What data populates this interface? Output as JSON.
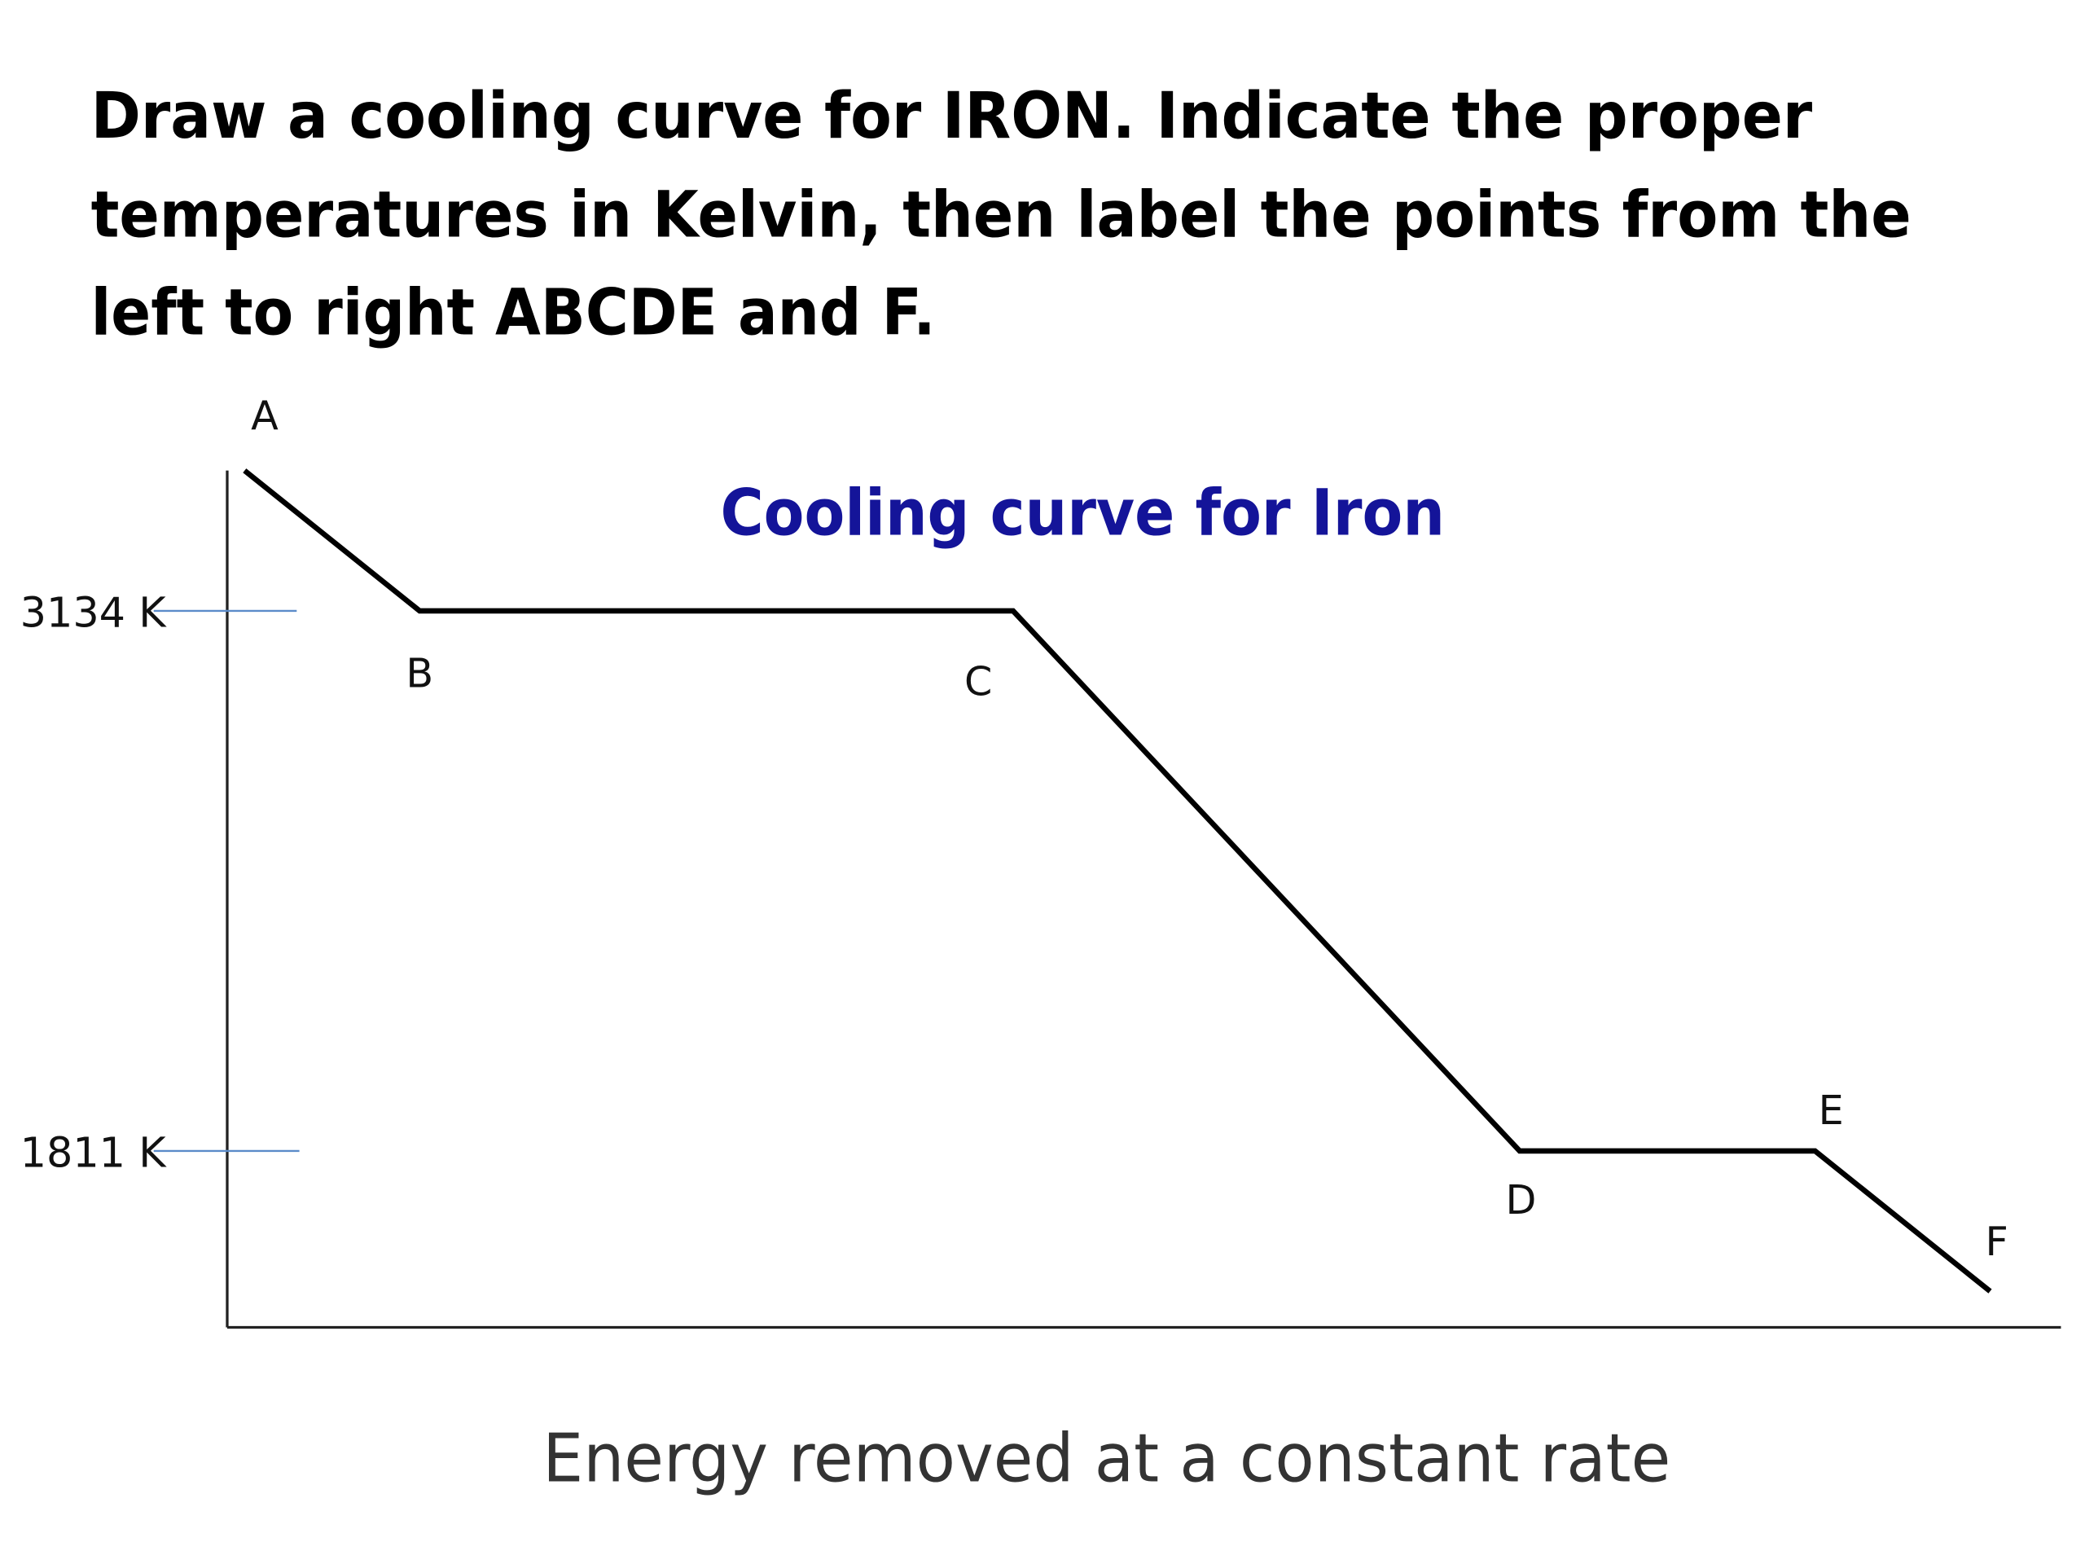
{
  "heading": {
    "lines": [
      "Draw a cooling curve for IRON.  Indicate the proper",
      "temperatures in Kelvin, then label the points from the",
      "left to right ABCDE and F."
    ]
  },
  "diagram": {
    "title": "Cooling curve for Iron",
    "temperature_labels": [
      "3134 K",
      "1811 K"
    ],
    "points": [
      "A",
      "B",
      "C",
      "D",
      "E",
      "F"
    ],
    "x_axis_label": "Energy removed at a constant rate"
  }
}
